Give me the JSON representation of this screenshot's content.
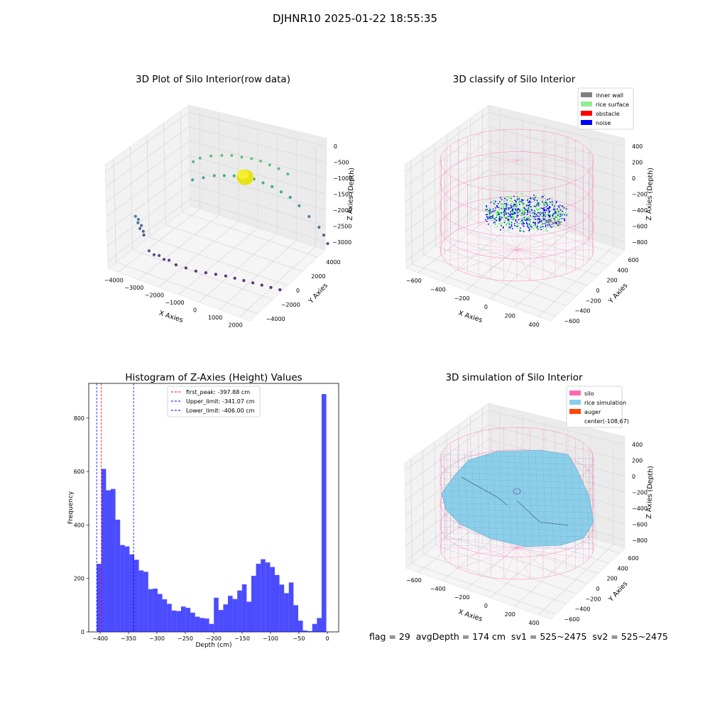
{
  "suptitle": "DJHNR10 2025-01-22 18:55:35",
  "status_line": "flag = 29  avgDepth = 174 cm  sv1 = 525~2475  sv2 = 525~2475",
  "chart_data": [
    {
      "type": "scatter",
      "title": "3D Plot of Silo Interior(row data)",
      "xlabel": "X Axies",
      "ylabel": "Y Axies",
      "zlabel": "Z Axies (Depth)",
      "x_ticks": [
        "−4000",
        "−3000",
        "−2000",
        "−1000",
        "0",
        "1000",
        "2000"
      ],
      "y_ticks": [
        "−4000",
        "−2000",
        "0",
        "2000",
        "4000"
      ],
      "z_ticks": [
        "0",
        "−500",
        "−1000",
        "−1500",
        "−2000",
        "−2500",
        "−3000"
      ],
      "xlim": [
        -4500,
        2500
      ],
      "ylim": [
        -4500,
        4500
      ],
      "zlim": [
        -3200,
        200
      ],
      "points_xyz": [
        [
          -4000,
          -2600,
          -1800
        ],
        [
          -3900,
          -2500,
          -1900
        ],
        [
          -3800,
          -2400,
          -2100
        ],
        [
          -3850,
          -2450,
          -2200
        ],
        [
          -3750,
          -2300,
          -2300
        ],
        [
          -3700,
          -2350,
          -2400
        ],
        [
          -3900,
          -2550,
          -2000
        ],
        [
          -3100,
          -3100,
          -2600
        ],
        [
          -2900,
          -3000,
          -2700
        ],
        [
          -2700,
          -2900,
          -2700
        ],
        [
          -2500,
          -2800,
          -2800
        ],
        [
          -2300,
          -2700,
          -2800
        ],
        [
          -2000,
          -2600,
          -2900
        ],
        [
          -1600,
          -2400,
          -2950
        ],
        [
          -1200,
          -2200,
          -3000
        ],
        [
          -800,
          -2000,
          -3000
        ],
        [
          -400,
          -1800,
          -3000
        ],
        [
          0,
          -1600,
          -3000
        ],
        [
          400,
          -1500,
          -3000
        ],
        [
          800,
          -1400,
          -3000
        ],
        [
          1200,
          -1300,
          -3000
        ],
        [
          1600,
          -1200,
          -3000
        ],
        [
          2000,
          -1100,
          -3000
        ],
        [
          2400,
          -1000,
          -3000
        ],
        [
          -3000,
          1500,
          -700
        ],
        [
          -2800,
          1800,
          -600
        ],
        [
          -2400,
          2100,
          -500
        ],
        [
          -2000,
          2400,
          -450
        ],
        [
          -1600,
          2600,
          -400
        ],
        [
          -1200,
          2800,
          -400
        ],
        [
          -800,
          3000,
          -400
        ],
        [
          -400,
          3100,
          -400
        ],
        [
          0,
          3200,
          -450
        ],
        [
          400,
          3300,
          -500
        ],
        [
          800,
          3400,
          -600
        ],
        [
          -2900,
          1200,
          -1200
        ],
        [
          -2500,
          1500,
          -1100
        ],
        [
          -2100,
          1800,
          -1000
        ],
        [
          -1700,
          2000,
          -950
        ],
        [
          -1300,
          2200,
          -900
        ],
        [
          -900,
          2400,
          -900
        ],
        [
          -500,
          2600,
          -900
        ],
        [
          -100,
          2700,
          -950
        ],
        [
          300,
          2800,
          -1000
        ],
        [
          700,
          2900,
          -1100
        ],
        [
          1100,
          3000,
          -1200
        ],
        [
          1500,
          3100,
          -1400
        ],
        [
          1900,
          3300,
          -1700
        ],
        [
          2300,
          3500,
          -2000
        ],
        [
          2400,
          3800,
          -2300
        ],
        [
          2500,
          4000,
          -2600
        ]
      ],
      "blob_xyz": [
        -800,
        2300,
        -850
      ],
      "colormap": "viridis by depth"
    },
    {
      "type": "scatter",
      "title": "3D classify of Silo Interior",
      "xlabel": "X Axies",
      "ylabel": "Y Axies",
      "zlabel": "Z Axies (Depth)",
      "x_ticks": [
        "−600",
        "−400",
        "−200",
        "0",
        "200",
        "400"
      ],
      "y_ticks": [
        "−600",
        "−400",
        "−200",
        "0",
        "200",
        "400",
        "600"
      ],
      "z_ticks": [
        "400",
        "200",
        "0",
        "−200",
        "−400",
        "−600",
        "−800"
      ],
      "xlim": [
        -750,
        550
      ],
      "ylim": [
        -650,
        650
      ],
      "zlim": [
        -850,
        450
      ],
      "legend": [
        {
          "label": "inner wall",
          "color": "#808080"
        },
        {
          "label": "rice surface",
          "color": "#90ee90"
        },
        {
          "label": "obstacle",
          "color": "#ff0000"
        },
        {
          "label": "noise",
          "color": "#0000ff"
        }
      ],
      "legend_position": "upper-right",
      "silo_wireframe": {
        "radius": 620,
        "z_top": 420,
        "z_bottom": -820,
        "color": "#ff69b4"
      },
      "surface_region": {
        "x_range": [
          -450,
          350
        ],
        "y_range": [
          -350,
          350
        ],
        "z_range": [
          -500,
          -150
        ]
      }
    },
    {
      "type": "histogram",
      "title": "Histogram of Z-Axies (Height) Values",
      "xlabel": "Depth (cm)",
      "ylabel": "Frequency",
      "x_ticks": [
        "−400",
        "−350",
        "−300",
        "−250",
        "−200",
        "−150",
        "−100",
        "−50",
        "0"
      ],
      "y_ticks": [
        "0",
        "200",
        "400",
        "600",
        "800"
      ],
      "xlim": [
        -420,
        20
      ],
      "ylim": [
        0,
        930
      ],
      "bin_start": -406,
      "bin_width": 8.25,
      "values": [
        255,
        610,
        530,
        535,
        420,
        325,
        320,
        290,
        270,
        230,
        225,
        160,
        162,
        142,
        122,
        105,
        80,
        78,
        95,
        90,
        72,
        57,
        52,
        50,
        30,
        128,
        82,
        103,
        135,
        123,
        155,
        178,
        113,
        210,
        255,
        272,
        260,
        243,
        213,
        177,
        145,
        185,
        100,
        42,
        5,
        3,
        30,
        52,
        890
      ],
      "bar_color": "#0000ff",
      "lines": [
        {
          "label": "first_peak: -397.88 cm",
          "x": -397.88,
          "color": "#ff0000",
          "style": "dashed"
        },
        {
          "label": "Upper_limit: -341.07 cm",
          "x": -341.07,
          "color": "#0000ff",
          "style": "dashed"
        },
        {
          "label": "Lower_limit: -406.00 cm",
          "x": -406.0,
          "color": "#0000ff",
          "style": "dashed"
        }
      ],
      "legend_position": "upper-center"
    },
    {
      "type": "surface",
      "title": "3D simulation of Silo Interior",
      "xlabel": "X Axies",
      "ylabel": "Y Axies",
      "zlabel": "Z Axies (Depth)",
      "x_ticks": [
        "−600",
        "−400",
        "−200",
        "0",
        "200",
        "400"
      ],
      "y_ticks": [
        "−600",
        "−400",
        "−200",
        "0",
        "200",
        "400",
        "600"
      ],
      "z_ticks": [
        "400",
        "200",
        "0",
        "−200",
        "−400",
        "−600",
        "−800"
      ],
      "xlim": [
        -750,
        550
      ],
      "ylim": [
        -650,
        650
      ],
      "zlim": [
        -850,
        450
      ],
      "legend": [
        {
          "label": "silo",
          "color": "#ff69b4"
        },
        {
          "label": "rice simulation",
          "color": "#87ceeb"
        },
        {
          "label": "auger",
          "color": "#ff4500"
        },
        {
          "label": "center(-108,67)",
          "color": ""
        }
      ],
      "legend_position": "upper-right",
      "center": [
        -108,
        67
      ],
      "silo_wireframe": {
        "radius": 620,
        "z_top": 420,
        "z_bottom": -820,
        "color": "#ff69b4"
      },
      "surface_z_range": [
        -500,
        250
      ]
    }
  ]
}
